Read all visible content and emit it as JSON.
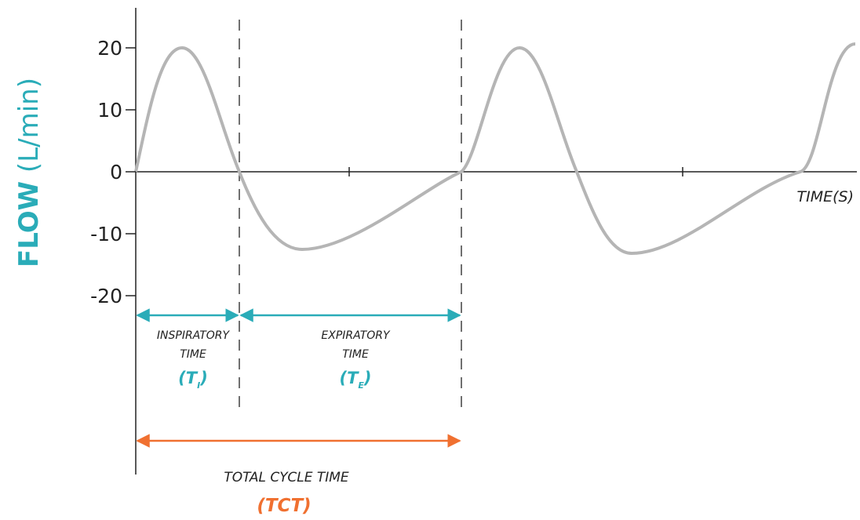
{
  "axis": {
    "y_label_bold": "FLOW",
    "y_label_unit": "(L/min)",
    "x_label": "TIME(S)",
    "yticks": [
      20,
      10,
      0,
      -10,
      -20
    ]
  },
  "phases": {
    "inspiratory": {
      "lines": [
        "INSPIRATORY",
        "TIME"
      ],
      "symbol": "(T",
      "subscript": "I",
      "close": ")"
    },
    "expiratory": {
      "lines": [
        "EXPIRATORY",
        "TIME"
      ],
      "symbol": "(T",
      "subscript": "E",
      "close": ")"
    }
  },
  "total": {
    "label": "TOTAL CYCLE TIME",
    "symbol": "(TCT)"
  }
}
